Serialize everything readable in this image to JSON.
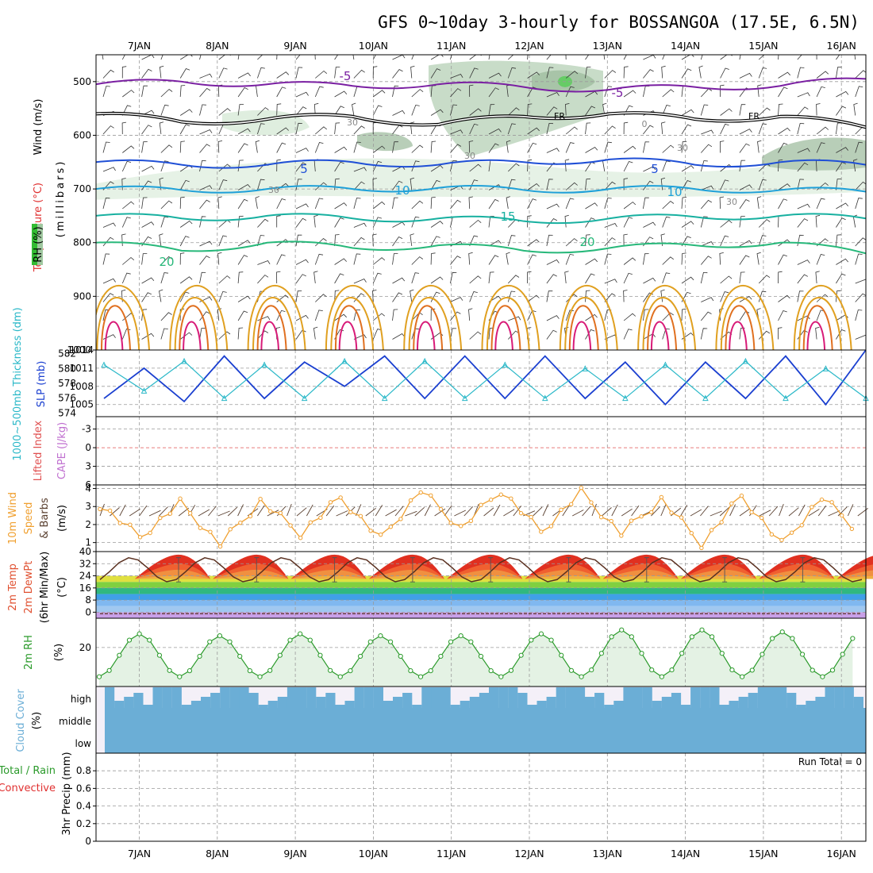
{
  "title": "GFS 0~10day 3-hourly for BOSSANGOA (17.5E, 6.5N)",
  "dates": [
    "7JAN",
    "8JAN",
    "9JAN",
    "10JAN",
    "11JAN",
    "12JAN",
    "13JAN",
    "14JAN",
    "15JAN",
    "16JAN"
  ],
  "colors": {
    "frame": "#000000",
    "grid": "#9a9a9a",
    "temp_cold": "#7a1fa2",
    "temp_cool": "#1f4fd6",
    "temp_cyan": "#1ea0d8",
    "temp_teal": "#17b0a0",
    "temp_green": "#27b87a",
    "temp_orange": "#e0a020",
    "temp_dkorange": "#e07020",
    "temp_hot": "#d81b78",
    "freezing": "#000000",
    "rh_fill": "#7a9a7a",
    "slp": "#1a3fd0",
    "thickness": "#2ab8c8",
    "lifted_index": "#e05050",
    "wind10m": "#f0a030",
    "barb": "#5a4030",
    "rh2m": "#2a9a2a",
    "rh2m_fill": "#e4f2e4",
    "cloud": "#6baed6",
    "cloud_bg": "#f4f0f8",
    "precip_total": "#2a9a2a",
    "precip_conv": "#e03030"
  },
  "panels": {
    "upper": {
      "ylabel_wind": "Wind (m/s)",
      "ylabel_temp": "Temperature (°C)",
      "ylabel_rh": "RH (%)",
      "ylabel_units": "(millibars)",
      "yticks": [
        "500",
        "600",
        "700",
        "800",
        "900",
        "1000"
      ],
      "contour_labels": [
        {
          "text": "-5",
          "color": "#7a1fa2"
        },
        {
          "text": "-5",
          "color": "#7a1fa2"
        },
        {
          "text": "FR",
          "color": "#000000"
        },
        {
          "text": "FR",
          "color": "#000000"
        },
        {
          "text": "5",
          "color": "#1f4fd6"
        },
        {
          "text": "5",
          "color": "#1f4fd6"
        },
        {
          "text": "10",
          "color": "#1ea0d8"
        },
        {
          "text": "10",
          "color": "#1ea0d8"
        },
        {
          "text": "15",
          "color": "#17b0a0"
        },
        {
          "text": "20",
          "color": "#27b87a"
        },
        {
          "text": "20",
          "color": "#27b87a"
        },
        {
          "text": "30",
          "color": "#888888"
        },
        {
          "text": "30",
          "color": "#888888"
        },
        {
          "text": "30",
          "color": "#888888"
        },
        {
          "text": "0",
          "color": "#888888"
        },
        {
          "text": "30",
          "color": "#888888"
        },
        {
          "text": "30",
          "color": "#888888"
        }
      ]
    },
    "slp": {
      "ylabel_left": "1000~500mb Thickness (dm)",
      "ylabel_right": "SLP (mb)",
      "yticks_left": [
        "574",
        "576",
        "578",
        "580",
        "582"
      ],
      "yticks_right": [
        "1005",
        "1008",
        "1011",
        "1014"
      ]
    },
    "cape": {
      "ylabel_left": "Lifted Index",
      "ylabel_right": "CAPE (J/kg)",
      "yticks": [
        "-3",
        "0",
        "3",
        "6"
      ]
    },
    "wind10m": {
      "ylabel_a": "10m Wind",
      "ylabel_b": "Speed",
      "ylabel_c": "& Barbs",
      "ylabel_units": "(m/s)",
      "yticks": [
        "1",
        "2",
        "3",
        "4"
      ]
    },
    "temp2m": {
      "ylabel_a": "2m Temp",
      "ylabel_b": "2m DewPt",
      "ylabel_c": "(6hr Min/Max)",
      "ylabel_units": "(°C)",
      "yticks": [
        "0",
        "8",
        "16",
        "24",
        "32",
        "40"
      ]
    },
    "rh2m": {
      "ylabel": "2m RH",
      "ylabel_units": "(%)",
      "yticks": [
        "20"
      ]
    },
    "cloud": {
      "ylabel": "Cloud Cover",
      "ylabel_units": "(%)",
      "levels": [
        "high",
        "middle",
        "low"
      ]
    },
    "precip": {
      "ylabel_a": "Total / Rain",
      "ylabel_b": "Convective",
      "ylabel_c": "3hr Precip (mm)",
      "yticks": [
        "0",
        "0.2",
        "0.4",
        "0.6",
        "0.8"
      ],
      "run_total": "Run Total = 0"
    }
  },
  "chart_data": [
    {
      "type": "line",
      "name": "upper-air temperature contours",
      "x": [
        "7JAN",
        "8JAN",
        "9JAN",
        "10JAN",
        "11JAN",
        "12JAN",
        "13JAN",
        "14JAN",
        "15JAN",
        "16JAN"
      ],
      "ylim": [
        450,
        1000
      ],
      "ylabel": "(millibars)",
      "series": [
        {
          "name": "-5",
          "values": [
            505,
            500,
            505,
            508,
            505,
            510,
            515,
            510,
            508,
            495
          ]
        },
        {
          "name": "FR",
          "values": [
            560,
            575,
            570,
            565,
            580,
            565,
            560,
            570,
            565,
            585
          ]
        },
        {
          "name": "5",
          "values": [
            650,
            655,
            655,
            650,
            655,
            650,
            645,
            655,
            650,
            655
          ]
        },
        {
          "name": "10",
          "values": [
            700,
            702,
            700,
            700,
            698,
            702,
            700,
            700,
            702,
            705
          ]
        },
        {
          "name": "15",
          "values": [
            750,
            755,
            750,
            755,
            755,
            760,
            755,
            752,
            750,
            755
          ]
        },
        {
          "name": "20",
          "values": [
            800,
            815,
            800,
            810,
            805,
            815,
            810,
            805,
            800,
            820
          ]
        }
      ]
    },
    {
      "type": "line",
      "name": "sea level pressure and thickness",
      "x": [
        "7JAN",
        "7JAN",
        "8JAN",
        "8JAN",
        "9JAN",
        "9JAN",
        "10JAN",
        "10JAN",
        "11JAN",
        "11JAN",
        "12JAN",
        "12JAN",
        "13JAN",
        "13JAN",
        "14JAN",
        "14JAN",
        "15JAN",
        "15JAN",
        "16JAN",
        "16JAN"
      ],
      "series": [
        {
          "name": "SLP (mb)",
          "ylim": [
            1003,
            1014
          ],
          "values": [
            1006,
            1011,
            1005.5,
            1013,
            1006,
            1012,
            1008,
            1013,
            1006,
            1013,
            1006,
            1013,
            1006,
            1012,
            1005,
            1012,
            1006,
            1013,
            1005,
            1014
          ]
        },
        {
          "name": "1000~500mb Thickness (dm)",
          "ylim": [
            574,
            582
          ],
          "values": [
            580.5,
            577,
            581,
            576,
            580.5,
            576,
            581,
            576,
            581,
            576,
            580.5,
            576,
            580,
            576,
            580.5,
            576,
            581,
            576,
            580,
            576
          ]
        }
      ]
    },
    {
      "type": "line",
      "name": "lifted index",
      "ylim": [
        6,
        -5
      ],
      "series": [
        {
          "name": "Lifted Index",
          "values": [
            0,
            0,
            0,
            0,
            0,
            0,
            0,
            0,
            0,
            0
          ]
        }
      ]
    },
    {
      "type": "line",
      "name": "10m wind speed",
      "ylim": [
        0.5,
        4.2
      ],
      "x": [
        "7JAN",
        "7JAN",
        "8JAN",
        "8JAN",
        "9JAN",
        "9JAN",
        "10JAN",
        "10JAN",
        "11JAN",
        "11JAN",
        "12JAN",
        "12JAN",
        "13JAN",
        "13JAN",
        "14JAN",
        "14JAN",
        "15JAN",
        "15JAN",
        "16JAN",
        "16JAN"
      ],
      "series": [
        {
          "name": "Speed",
          "values": [
            3.1,
            1.3,
            3.2,
            0.9,
            3.3,
            1.5,
            3.5,
            1.2,
            3.9,
            1.8,
            3.9,
            1.6,
            3.8,
            1.5,
            3.4,
            0.9,
            3.6,
            0.9,
            3.5,
            1.5
          ]
        }
      ]
    },
    {
      "type": "area",
      "name": "2m temperature",
      "ylim": [
        -4,
        40
      ],
      "x": [
        "7JAN",
        "8JAN",
        "9JAN",
        "10JAN",
        "11JAN",
        "12JAN",
        "13JAN",
        "14JAN",
        "15JAN",
        "16JAN"
      ],
      "series": [
        {
          "name": "2m Temp max",
          "values": [
            36,
            36,
            36,
            36,
            36,
            36,
            36,
            36,
            36,
            36
          ]
        },
        {
          "name": "2m Temp min",
          "values": [
            20,
            20,
            20,
            20,
            20,
            20,
            20,
            20,
            20,
            20
          ]
        },
        {
          "name": "2m DewPt",
          "values": [
            -1,
            -1,
            -1,
            -1,
            -1,
            -1,
            -1,
            -1,
            -1,
            -1
          ]
        }
      ]
    },
    {
      "type": "area",
      "name": "2m relative humidity",
      "ylim": [
        0,
        35
      ],
      "x": [
        "7JAN",
        "7JAN",
        "8JAN",
        "8JAN",
        "9JAN",
        "9JAN",
        "10JAN",
        "10JAN",
        "11JAN",
        "11JAN",
        "12JAN",
        "12JAN",
        "13JAN",
        "13JAN",
        "14JAN",
        "14JAN",
        "15JAN",
        "15JAN",
        "16JAN",
        "16JAN"
      ],
      "series": [
        {
          "name": "2m RH",
          "values": [
            5,
            27,
            5,
            26,
            5,
            27,
            5,
            26,
            5,
            26,
            5,
            27,
            5,
            29,
            5,
            29,
            5,
            28,
            5,
            28
          ]
        }
      ]
    },
    {
      "type": "bar",
      "name": "cloud cover",
      "levels": [
        "high",
        "middle",
        "low"
      ],
      "series": [
        {
          "name": "middle",
          "values": [
            100,
            100,
            100,
            100,
            100,
            100,
            100,
            100,
            100,
            100
          ]
        },
        {
          "name": "low",
          "values": [
            100,
            100,
            100,
            100,
            100,
            100,
            100,
            100,
            100,
            100
          ]
        }
      ]
    },
    {
      "type": "bar",
      "name": "3hr precipitation",
      "ylim": [
        0,
        1
      ],
      "series": [
        {
          "name": "Total / Rain",
          "values": [
            0,
            0,
            0,
            0,
            0,
            0,
            0,
            0,
            0,
            0
          ]
        }
      ]
    }
  ]
}
